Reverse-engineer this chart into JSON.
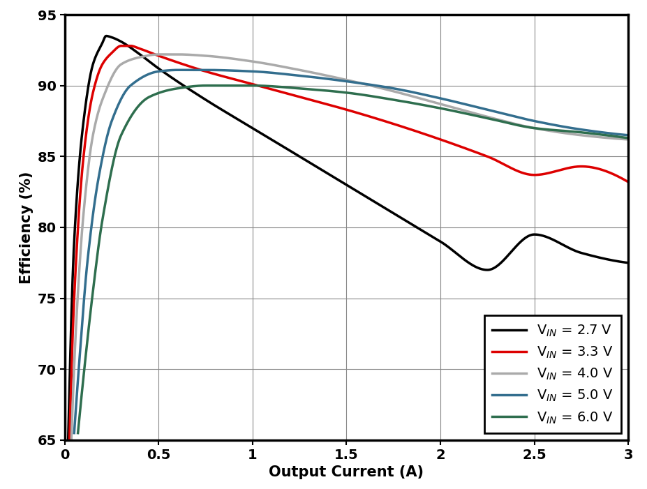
{
  "xlabel": "Output Current (A)",
  "ylabel": "Efficiency (%)",
  "xlim": [
    0,
    3
  ],
  "ylim": [
    65,
    95
  ],
  "xticks": [
    0,
    0.5,
    1.0,
    1.5,
    2.0,
    2.5,
    3.0
  ],
  "yticks": [
    65,
    70,
    75,
    80,
    85,
    90,
    95
  ],
  "background_color": "#ffffff",
  "curves": [
    {
      "label": "V$_{IN}$ = 2.7 V",
      "color": "#000000",
      "linewidth": 2.5,
      "points_x": [
        0.018,
        0.05,
        0.1,
        0.15,
        0.2,
        0.22,
        0.25,
        0.3,
        0.4,
        0.5,
        0.75,
        1.0,
        1.25,
        1.5,
        1.75,
        2.0,
        2.25,
        2.5,
        2.75,
        3.0
      ],
      "points_y": [
        65.0,
        79.0,
        87.5,
        91.5,
        93.0,
        93.5,
        93.4,
        93.1,
        92.2,
        91.2,
        89.0,
        87.0,
        85.0,
        83.0,
        81.0,
        79.0,
        77.0,
        79.5,
        78.2,
        77.5
      ]
    },
    {
      "label": "V$_{IN}$ = 3.3 V",
      "color": "#dd0000",
      "linewidth": 2.5,
      "points_x": [
        0.025,
        0.05,
        0.1,
        0.15,
        0.2,
        0.25,
        0.3,
        0.35,
        0.4,
        0.5,
        0.75,
        1.0,
        1.25,
        1.5,
        1.75,
        2.0,
        2.25,
        2.5,
        2.75,
        3.0
      ],
      "points_y": [
        65.0,
        75.0,
        85.0,
        89.5,
        91.5,
        92.3,
        92.8,
        92.8,
        92.6,
        92.1,
        91.0,
        90.1,
        89.2,
        88.3,
        87.3,
        86.2,
        85.0,
        83.7,
        84.3,
        83.2
      ]
    },
    {
      "label": "V$_{IN}$ = 4.0 V",
      "color": "#aaaaaa",
      "linewidth": 2.5,
      "points_x": [
        0.035,
        0.06,
        0.1,
        0.15,
        0.2,
        0.3,
        0.4,
        0.5,
        0.6,
        0.75,
        1.0,
        1.25,
        1.5,
        1.75,
        2.0,
        2.25,
        2.5,
        2.75,
        3.0
      ],
      "points_y": [
        65.0,
        73.0,
        81.0,
        86.5,
        89.0,
        91.5,
        92.0,
        92.2,
        92.2,
        92.1,
        91.7,
        91.1,
        90.4,
        89.6,
        88.7,
        87.8,
        87.0,
        86.5,
        86.2
      ]
    },
    {
      "label": "V$_{IN}$ = 5.0 V",
      "color": "#336e8e",
      "linewidth": 2.5,
      "points_x": [
        0.05,
        0.08,
        0.12,
        0.18,
        0.25,
        0.35,
        0.5,
        0.6,
        0.75,
        1.0,
        1.25,
        1.5,
        1.75,
        2.0,
        2.25,
        2.5,
        2.75,
        3.0
      ],
      "points_y": [
        65.5,
        71.0,
        77.5,
        83.5,
        87.5,
        90.0,
        91.0,
        91.1,
        91.1,
        91.0,
        90.7,
        90.3,
        89.8,
        89.1,
        88.3,
        87.5,
        86.9,
        86.5
      ]
    },
    {
      "label": "V$_{IN}$ = 6.0 V",
      "color": "#2e6e4e",
      "linewidth": 2.5,
      "points_x": [
        0.07,
        0.1,
        0.15,
        0.2,
        0.3,
        0.45,
        0.6,
        0.75,
        1.0,
        1.25,
        1.5,
        1.75,
        2.0,
        2.25,
        2.5,
        2.75,
        3.0
      ],
      "points_y": [
        65.5,
        69.5,
        75.5,
        80.5,
        86.5,
        89.2,
        89.8,
        90.0,
        90.0,
        89.8,
        89.5,
        89.0,
        88.4,
        87.7,
        87.0,
        86.7,
        86.3
      ]
    }
  ]
}
